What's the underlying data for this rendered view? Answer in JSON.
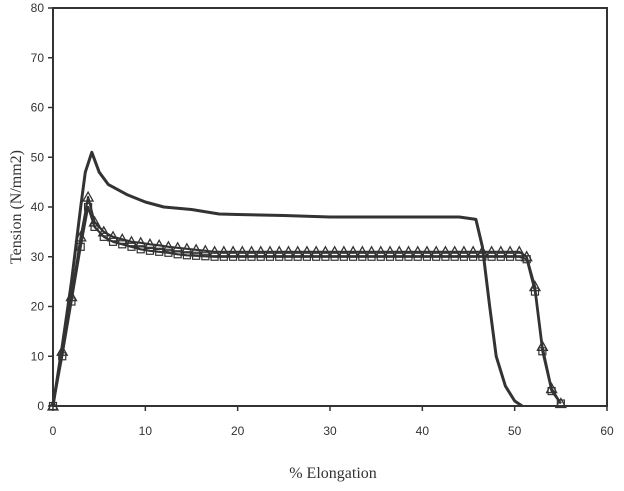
{
  "chart_data": {
    "type": "line",
    "title": "",
    "xlabel": "% Elongation",
    "ylabel": "Tension (N/mm2)",
    "xlim": [
      0,
      60
    ],
    "ylim": [
      0,
      80
    ],
    "xticks": [
      0,
      10,
      20,
      30,
      40,
      50,
      60
    ],
    "yticks": [
      0,
      10,
      20,
      30,
      40,
      50,
      60,
      70,
      80
    ],
    "grid": false,
    "legend": "none",
    "line_color": "#333333",
    "series": [
      {
        "marker": "none",
        "style": "solid",
        "x": [
          0,
          1,
          2,
          3,
          3.5,
          4.2,
          5,
          6,
          8,
          10,
          12,
          15,
          18,
          20,
          25,
          30,
          35,
          40,
          44,
          45.8,
          46.5,
          47.3,
          48,
          49,
          50,
          50.8
        ],
        "y": [
          0,
          12,
          25,
          40,
          47,
          51,
          47,
          44.5,
          42.5,
          41,
          40,
          39.5,
          38.6,
          38.5,
          38.3,
          38,
          38,
          38,
          38,
          37.5,
          32,
          20,
          10,
          4,
          1,
          0
        ]
      },
      {
        "marker": "triangle",
        "style": "solid",
        "x": [
          0,
          1,
          2,
          3,
          3.8,
          4.5,
          5.5,
          6.5,
          7.5,
          8.5,
          9.5,
          10.5,
          11.5,
          12.5,
          13.5,
          14.5,
          15.5,
          16.5,
          17.5,
          18.5,
          19.5,
          20.5,
          21.5,
          22.5,
          23.5,
          24.5,
          25.5,
          26.5,
          27.5,
          28.5,
          29.5,
          30.5,
          31.5,
          32.5,
          33.5,
          34.5,
          35.5,
          36.5,
          37.5,
          38.5,
          39.5,
          40.5,
          41.5,
          42.5,
          43.5,
          44.5,
          45.5,
          46.5,
          47.5,
          48.5,
          49.5,
          50.5,
          51.3,
          52.2,
          53,
          54,
          55
        ],
        "y": [
          0,
          11,
          22,
          34,
          42,
          37,
          35,
          34,
          33.5,
          33,
          32.8,
          32.5,
          32.3,
          32,
          31.8,
          31.6,
          31.4,
          31.2,
          31,
          31,
          31,
          31,
          31,
          31,
          31,
          31,
          31,
          31,
          31,
          31,
          31,
          31,
          31,
          31,
          31,
          31,
          31,
          31,
          31,
          31,
          31,
          31,
          31,
          31,
          31,
          31,
          31,
          31,
          31,
          31,
          31,
          31,
          30,
          24,
          12,
          3.5,
          0.5
        ]
      },
      {
        "marker": "square",
        "style": "solid",
        "x": [
          0,
          1,
          2,
          3,
          3.8,
          4.5,
          5.5,
          6.5,
          7.5,
          8.5,
          9.5,
          10.5,
          11.5,
          12.5,
          13.5,
          14.5,
          15.5,
          16.5,
          17.5,
          18.5,
          19.5,
          20.5,
          21.5,
          22.5,
          23.5,
          24.5,
          25.5,
          26.5,
          27.5,
          28.5,
          29.5,
          30.5,
          31.5,
          32.5,
          33.5,
          34.5,
          35.5,
          36.5,
          37.5,
          38.5,
          39.5,
          40.5,
          41.5,
          42.5,
          43.5,
          44.5,
          45.5,
          46.5,
          47.5,
          48.5,
          49.5,
          50.5,
          51.3,
          52.2,
          53,
          54,
          55
        ],
        "y": [
          0,
          10,
          21,
          32,
          40,
          36,
          34,
          33,
          32.5,
          32,
          31.5,
          31.2,
          31,
          30.8,
          30.5,
          30.3,
          30.2,
          30.1,
          30,
          30,
          30,
          30,
          30,
          30,
          30,
          30,
          30,
          30,
          30,
          30,
          30,
          30,
          30,
          30,
          30,
          30,
          30,
          30,
          30,
          30,
          30,
          30,
          30,
          30,
          30,
          30,
          30,
          30,
          30,
          30,
          30,
          30,
          29.5,
          23,
          11,
          3,
          0.5
        ]
      }
    ]
  }
}
